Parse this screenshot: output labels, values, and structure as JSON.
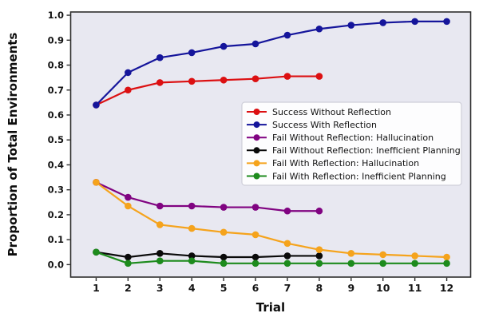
{
  "chart_data": {
    "type": "line",
    "title": "",
    "xlabel": "Trial",
    "ylabel": "Proportion of Total Environments",
    "xlim": [
      0.2,
      12.75
    ],
    "ylim": [
      -0.05,
      1.013
    ],
    "xticks": [
      "1",
      "2",
      "3",
      "4",
      "5",
      "6",
      "7",
      "8",
      "9",
      "10",
      "11",
      "12"
    ],
    "yticks": [
      "0.0",
      "0.1",
      "0.2",
      "0.3",
      "0.4",
      "0.5",
      "0.6",
      "0.7",
      "0.8",
      "0.9",
      "1.0"
    ],
    "grid": false,
    "legend_position": "center-right",
    "plot_background": "#e8e8f1",
    "figure_background": "#ffffff",
    "spine_color": "#2e2e2e",
    "tick_label_color": "#141414",
    "legend_background": "#fdfdfe",
    "legend_border": "#cfcfd9",
    "legend_text_color": "#111111",
    "series": [
      {
        "name": "Success Without Reflection",
        "color": "#dc1012",
        "x": [
          1,
          2,
          3,
          4,
          5,
          6,
          7,
          8
        ],
        "values": [
          0.64,
          0.7,
          0.73,
          0.735,
          0.74,
          0.745,
          0.755,
          0.755
        ]
      },
      {
        "name": "Success With Reflection",
        "color": "#15159b",
        "x": [
          1,
          2,
          3,
          4,
          5,
          6,
          7,
          8,
          9,
          10,
          11,
          12
        ],
        "values": [
          0.64,
          0.77,
          0.83,
          0.85,
          0.875,
          0.885,
          0.92,
          0.945,
          0.96,
          0.97,
          0.975,
          0.975
        ]
      },
      {
        "name": "Fail Without Reflection: Hallucination",
        "color": "#800381",
        "x": [
          1,
          2,
          3,
          4,
          5,
          6,
          7,
          8
        ],
        "values": [
          0.33,
          0.27,
          0.235,
          0.235,
          0.23,
          0.23,
          0.215,
          0.215
        ]
      },
      {
        "name": "Fail Without Reflection: Inefficient Planning",
        "color": "#0a0a0a",
        "x": [
          1,
          2,
          3,
          4,
          5,
          6,
          7,
          8
        ],
        "values": [
          0.05,
          0.03,
          0.045,
          0.035,
          0.03,
          0.03,
          0.035,
          0.035
        ]
      },
      {
        "name": "Fail With Reflection: Hallucination",
        "color": "#f5a31c",
        "x": [
          1,
          2,
          3,
          4,
          5,
          6,
          7,
          8,
          9,
          10,
          11,
          12
        ],
        "values": [
          0.33,
          0.235,
          0.16,
          0.145,
          0.13,
          0.12,
          0.085,
          0.06,
          0.045,
          0.04,
          0.035,
          0.03
        ]
      },
      {
        "name": "Fail With Reflection: Inefficient Planning",
        "color": "#1d8b1d",
        "x": [
          1,
          2,
          3,
          4,
          5,
          6,
          7,
          8,
          9,
          10,
          11,
          12
        ],
        "values": [
          0.05,
          0.005,
          0.015,
          0.015,
          0.005,
          0.005,
          0.005,
          0.005,
          0.005,
          0.005,
          0.005,
          0.005
        ]
      }
    ]
  }
}
